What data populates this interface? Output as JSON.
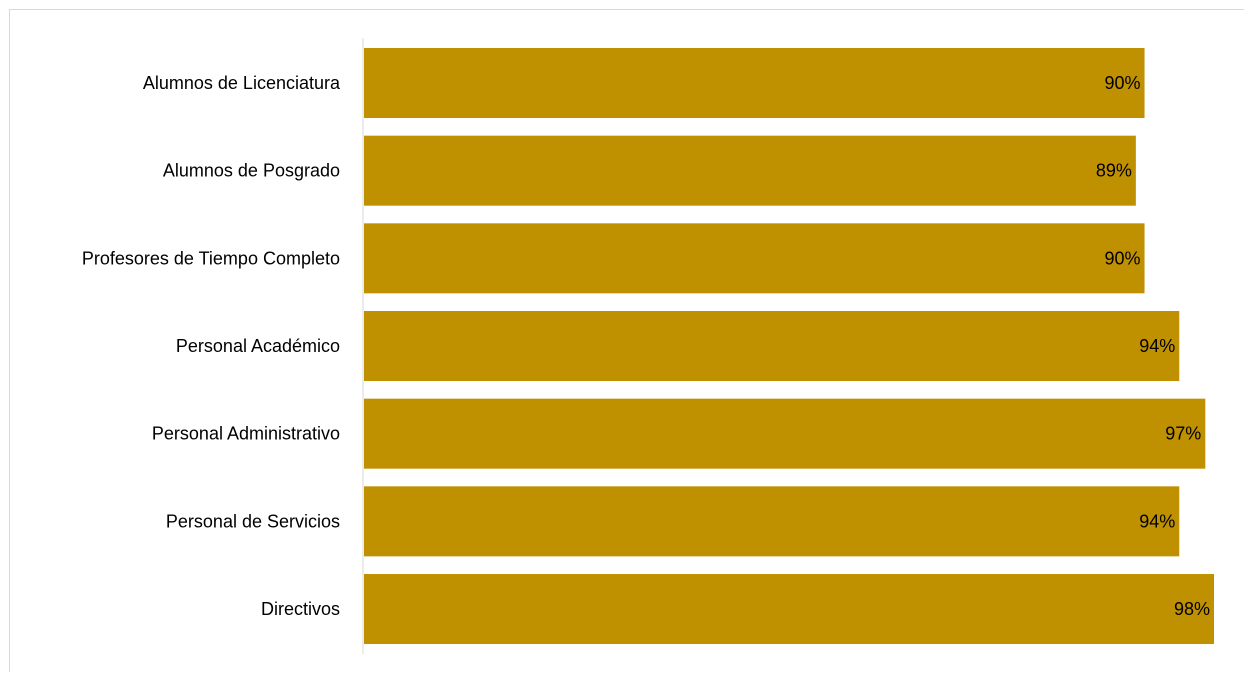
{
  "chart_data": {
    "type": "bar",
    "orientation": "horizontal",
    "categories": [
      "Alumnos de Licenciatura",
      "Alumnos de Posgrado",
      "Profesores de Tiempo Completo",
      "Personal Académico",
      "Personal Administrativo",
      "Personal de Servicios",
      "Directivos"
    ],
    "values": [
      90,
      89,
      90,
      94,
      97,
      94,
      98
    ],
    "value_labels": [
      "90%",
      "89%",
      "90%",
      "94%",
      "97%",
      "94%",
      "98%"
    ],
    "unit": "%",
    "xlim": [
      0,
      98
    ],
    "bar_color": "#bf9000",
    "grid": false,
    "legend": "none"
  }
}
